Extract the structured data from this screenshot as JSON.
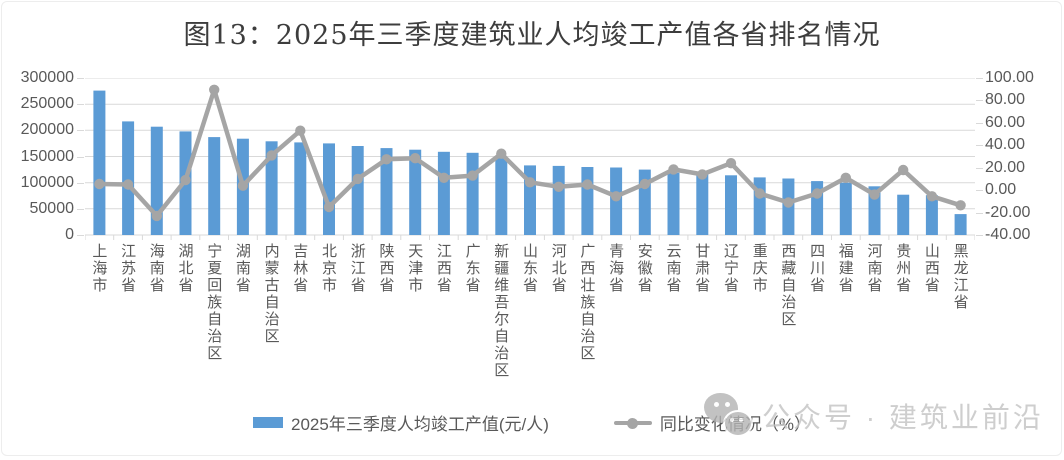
{
  "title": "图13：2025年三季度建筑业人均竣工产值各省排名情况",
  "legend": {
    "bar_label": "2025年三季度人均竣工产值(元/人)",
    "line_label": "同比变化情况（%）"
  },
  "watermark": {
    "icon": "wechat-bubbles-icon",
    "text": "公众号 · 建筑业前沿"
  },
  "colors": {
    "bar": "#5B9BD5",
    "line": "#A5A5A5",
    "gridline": "#D9D9D9",
    "axis_text": "#595959",
    "title_text": "#3D3D3D",
    "watermark_text": "#C2C2C2"
  },
  "chart_data": {
    "type": "bar",
    "combo": "bar+line dual-axis",
    "title": "图13：2025年三季度建筑业人均竣工产值各省排名情况",
    "grid": true,
    "legend_position": "bottom",
    "categories": [
      "上海市",
      "江苏省",
      "海南省",
      "湖北省",
      "宁夏回族自治区",
      "湖南省",
      "内蒙古自治区",
      "吉林省",
      "北京市",
      "浙江省",
      "陕西省",
      "天津市",
      "江西省",
      "广东省",
      "新疆维吾尔自治区",
      "山东省",
      "河北省",
      "广西壮族自治区",
      "青海省",
      "安徽省",
      "云南省",
      "甘肃省",
      "辽宁省",
      "重庆市",
      "西藏自治区",
      "四川省",
      "福建省",
      "河南省",
      "贵州省",
      "山西省",
      "黑龙江省"
    ],
    "series": [
      {
        "name": "2025年三季度人均竣工产值(元/人)",
        "type": "bar",
        "axis": "left",
        "color": "#5B9BD5",
        "values": [
          276000,
          217000,
          207000,
          198000,
          187000,
          184000,
          179000,
          177000,
          175000,
          170000,
          166000,
          163000,
          159000,
          157000,
          147000,
          133000,
          132000,
          130000,
          129000,
          125000,
          119000,
          116000,
          114000,
          110000,
          108000,
          103000,
          100000,
          93000,
          77000,
          76000,
          40000
        ]
      },
      {
        "name": "同比变化情况（%）",
        "type": "line",
        "axis": "right",
        "color": "#A5A5A5",
        "values": [
          5.5,
          5.0,
          -23.0,
          9.0,
          89.5,
          4.0,
          31.0,
          53.0,
          -15.0,
          10.0,
          27.5,
          28.5,
          11.0,
          13.0,
          32.5,
          7.0,
          3.0,
          5.0,
          -5.5,
          5.5,
          18.5,
          14.0,
          24.0,
          -3.0,
          -11.0,
          -3.0,
          11.0,
          -4.0,
          18.0,
          -5.5,
          -13.5
        ]
      }
    ],
    "left_axis": {
      "min": 0,
      "max": 300000,
      "step": 50000,
      "ticks": [
        "300000",
        "250000",
        "200000",
        "150000",
        "100000",
        "50000",
        "0"
      ]
    },
    "right_axis": {
      "min": -40,
      "max": 100,
      "step": 20,
      "ticks": [
        "100.00",
        "80.00",
        "60.00",
        "40.00",
        "20.00",
        "0.00",
        "-20.00",
        "-40.00"
      ]
    }
  }
}
